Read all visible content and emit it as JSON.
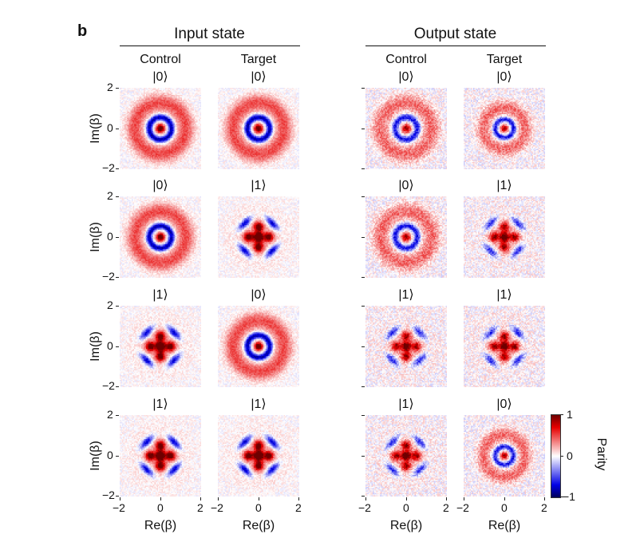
{
  "figure_label": "b",
  "groups": [
    {
      "title": "Input state"
    },
    {
      "title": "Output state"
    }
  ],
  "column_titles": [
    "Control",
    "Target",
    "Control",
    "Target"
  ],
  "chart_data": {
    "type": "heatmap",
    "xlabel": "Re(β)",
    "ylabel": "Im(β)",
    "xlim": [
      -2,
      2
    ],
    "ylim": [
      -2,
      2
    ],
    "xticks": [
      "−2",
      "0",
      "2"
    ],
    "yticks": [
      "2",
      "0",
      "−2"
    ],
    "colorbar": {
      "label": "Parity",
      "range": [
        -1,
        1
      ],
      "ticks": [
        "1",
        "0",
        "−1"
      ],
      "colors": [
        "#6e0000",
        "#e60000",
        "#ffffff",
        "#0000e6",
        "#00005a"
      ]
    },
    "rows": [
      {
        "panels": [
          {
            "group": "Input state",
            "column": "Control",
            "state": "|0⟩",
            "pattern": "vacuum"
          },
          {
            "group": "Input state",
            "column": "Target",
            "state": "|0⟩",
            "pattern": "vacuum"
          },
          {
            "group": "Output state",
            "column": "Control",
            "state": "|0⟩",
            "pattern": "vacuum"
          },
          {
            "group": "Output state",
            "column": "Target",
            "state": "|0⟩",
            "pattern": "vacuum"
          }
        ]
      },
      {
        "panels": [
          {
            "group": "Input state",
            "column": "Control",
            "state": "|0⟩",
            "pattern": "vacuum"
          },
          {
            "group": "Input state",
            "column": "Target",
            "state": "|1⟩",
            "pattern": "grid"
          },
          {
            "group": "Output state",
            "column": "Control",
            "state": "|0⟩",
            "pattern": "vacuum"
          },
          {
            "group": "Output state",
            "column": "Target",
            "state": "|1⟩",
            "pattern": "grid"
          }
        ]
      },
      {
        "panels": [
          {
            "group": "Input state",
            "column": "Control",
            "state": "|1⟩",
            "pattern": "grid"
          },
          {
            "group": "Input state",
            "column": "Target",
            "state": "|0⟩",
            "pattern": "vacuum"
          },
          {
            "group": "Output state",
            "column": "Control",
            "state": "|1⟩",
            "pattern": "grid"
          },
          {
            "group": "Output state",
            "column": "Target",
            "state": "|1⟩",
            "pattern": "grid"
          }
        ]
      },
      {
        "panels": [
          {
            "group": "Input state",
            "column": "Control",
            "state": "|1⟩",
            "pattern": "grid"
          },
          {
            "group": "Input state",
            "column": "Target",
            "state": "|1⟩",
            "pattern": "grid"
          },
          {
            "group": "Output state",
            "column": "Control",
            "state": "|1⟩",
            "pattern": "grid"
          },
          {
            "group": "Output state",
            "column": "Target",
            "state": "|0⟩",
            "pattern": "vacuum"
          }
        ]
      }
    ]
  }
}
